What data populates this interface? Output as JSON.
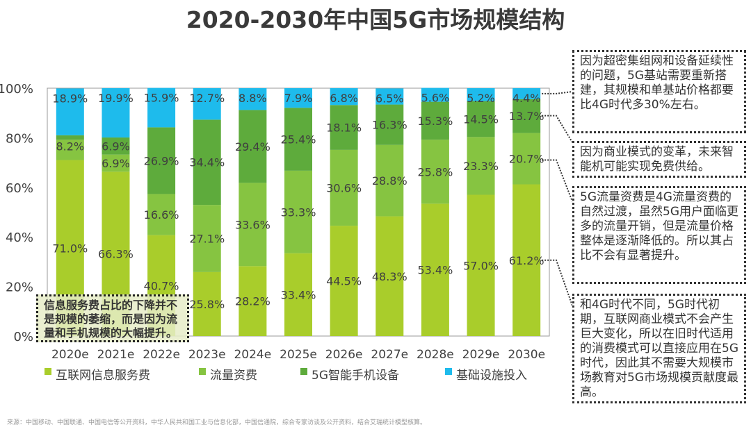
{
  "chart_data": {
    "type": "bar",
    "stacked": true,
    "title": "2020-2030年中国5G市场规模结构",
    "categories": [
      "2020e",
      "2021e",
      "2022e",
      "2023e",
      "2024e",
      "2025e",
      "2026e",
      "2027e",
      "2028e",
      "2029e",
      "2030e"
    ],
    "ylim": [
      0,
      100
    ],
    "yticks": [
      "0%",
      "20%",
      "40%",
      "60%",
      "80%",
      "100%"
    ],
    "legend_position": "bottom",
    "series": [
      {
        "name": "互联网信息服务费",
        "color": "#a9cd2b",
        "values": [
          71.0,
          66.3,
          40.7,
          25.8,
          28.2,
          33.4,
          44.5,
          48.3,
          53.4,
          57.0,
          61.2
        ]
      },
      {
        "name": "流量资费",
        "color": "#86c441",
        "values": [
          8.2,
          6.9,
          16.6,
          27.1,
          33.6,
          33.3,
          30.6,
          28.8,
          25.8,
          23.3,
          20.7
        ]
      },
      {
        "name": "5G智能手机设备",
        "color": "#5eab3c",
        "values": [
          1.8,
          6.9,
          26.9,
          34.4,
          29.4,
          25.4,
          18.1,
          16.3,
          15.3,
          14.5,
          13.7
        ]
      },
      {
        "name": "基础设施投入",
        "color": "#1ebbec",
        "values": [
          18.9,
          19.9,
          15.9,
          12.7,
          8.8,
          7.9,
          6.8,
          6.5,
          5.6,
          5.2,
          4.4
        ]
      }
    ]
  },
  "notes": {
    "left": "信息服务费占比的下降并不是规模的萎缩，而是因为流量和手机规模的大幅提升。",
    "infra": "因为超密集组网和设备延续性的问题，5G基站需要重新搭建，其规模和单基站价格都要比4G时代多30%左右。",
    "phone": "因为商业模式的变革，未来智能机可能实现免费供给。",
    "traffic": "5G流量资费是4G流量资费的自然过渡，虽然5G用户面临更多的流量开销，但是流量价格整体是逐渐降低的。所以其占比不会有显著提升。",
    "internet": "和4G时代不同，5G时代初期，互联网商业模式不会产生巨大变化，所以在旧时代适用的消费模式可以直接应用在5G时代，因此其不需要大规模市场教育对5G市场规模贡献度最高。"
  },
  "source": "来源：中国移动、中国联通、中国电信等公开资料，中华人民共和国工业与信息化部，中国信通院，综合专家访谈及公开资料，结合艾瑞统计模型核算。"
}
